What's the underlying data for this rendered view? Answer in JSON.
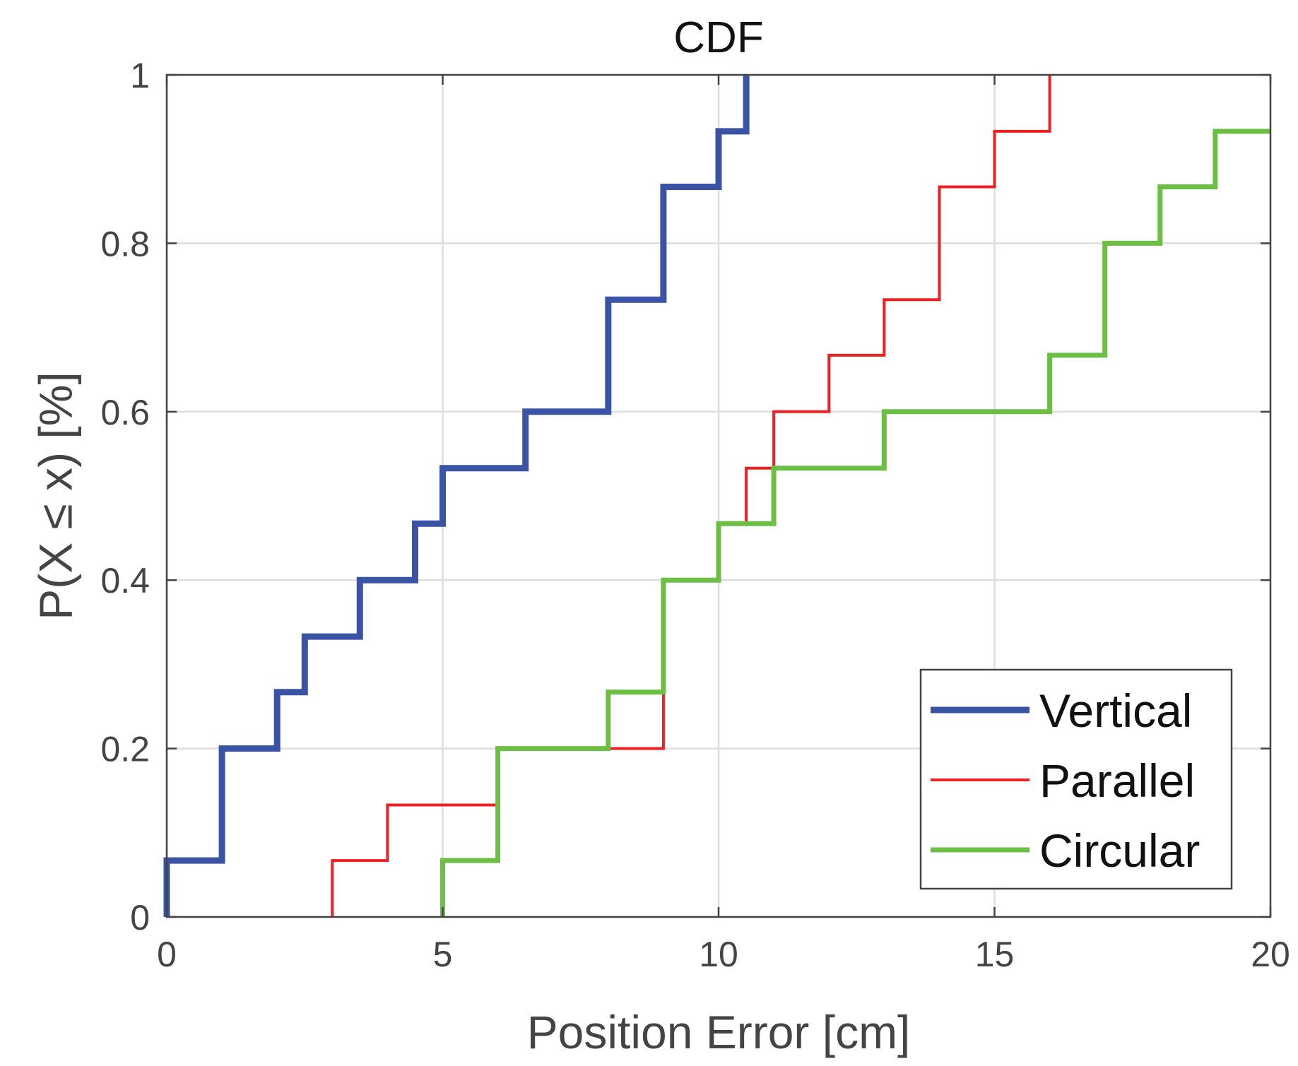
{
  "chart_data": {
    "type": "line",
    "step": true,
    "title": "CDF",
    "xlabel": "Position Error [cm]",
    "ylabel": "P(X ≤ x) [%]",
    "xlim": [
      0,
      20
    ],
    "ylim": [
      0,
      1
    ],
    "xticks": [
      0,
      5,
      10,
      15,
      20
    ],
    "xtick_labels": [
      "0",
      "5",
      "10",
      "15",
      "20"
    ],
    "yticks": [
      0,
      0.2,
      0.4,
      0.6,
      0.8,
      1
    ],
    "ytick_labels": [
      "0",
      "0.2",
      "0.4",
      "0.6",
      "0.8",
      "1"
    ],
    "grid": true,
    "legend_position": "bottom-right",
    "series": [
      {
        "name": "Vertical",
        "color": "#3a53a4",
        "line_weight": "thick",
        "x": [
          0,
          0,
          1,
          1,
          2,
          2,
          2.5,
          2.5,
          3.5,
          3.5,
          4.5,
          4.5,
          5,
          5,
          6.5,
          6.5,
          8,
          8,
          9,
          9,
          10,
          10,
          10.5,
          10.5
        ],
        "y": [
          0,
          0.067,
          0.067,
          0.2,
          0.2,
          0.267,
          0.267,
          0.333,
          0.333,
          0.4,
          0.4,
          0.467,
          0.467,
          0.533,
          0.533,
          0.6,
          0.6,
          0.733,
          0.733,
          0.867,
          0.867,
          0.933,
          0.933,
          1
        ]
      },
      {
        "name": "Parallel",
        "color": "#ed2024",
        "line_weight": "thin",
        "x": [
          3,
          3,
          4,
          4,
          6,
          6,
          8,
          8,
          9,
          9,
          10,
          10,
          10.5,
          10.5,
          11,
          11,
          12,
          12,
          13,
          13,
          14,
          14,
          15,
          15,
          16,
          16
        ],
        "y": [
          0,
          0.067,
          0.067,
          0.133,
          0.133,
          0.2,
          0.2,
          0.2,
          0.2,
          0.4,
          0.4,
          0.467,
          0.467,
          0.533,
          0.533,
          0.6,
          0.6,
          0.667,
          0.667,
          0.733,
          0.733,
          0.867,
          0.867,
          0.933,
          0.933,
          1
        ]
      },
      {
        "name": "Circular",
        "color": "#6cbe45",
        "line_weight": "medium",
        "x": [
          5,
          5,
          6,
          6,
          8,
          8,
          9,
          9,
          10,
          10,
          11,
          11,
          13,
          13,
          16,
          16,
          17,
          17,
          18,
          18,
          19,
          19,
          20
        ],
        "y": [
          0,
          0.067,
          0.067,
          0.2,
          0.2,
          0.267,
          0.267,
          0.4,
          0.4,
          0.467,
          0.467,
          0.533,
          0.533,
          0.6,
          0.6,
          0.667,
          0.667,
          0.8,
          0.8,
          0.867,
          0.867,
          0.933,
          0.933
        ]
      }
    ]
  }
}
